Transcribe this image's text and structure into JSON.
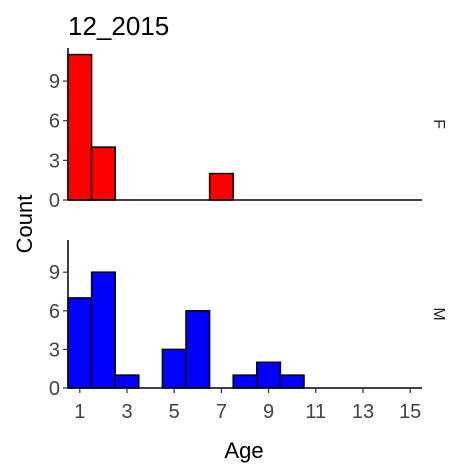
{
  "chart_data": {
    "type": "bar",
    "title": "12_2015",
    "xlabel": "Age",
    "ylabel": "Count",
    "x_ticks": [
      1,
      3,
      5,
      7,
      9,
      11,
      13,
      15
    ],
    "y_ticks": [
      0,
      3,
      6,
      9
    ],
    "xlim": [
      0.5,
      15.5
    ],
    "ylim": [
      0,
      11.5
    ],
    "bins": [
      1,
      2,
      3,
      4,
      5,
      6,
      7,
      8,
      9,
      10
    ],
    "panels": [
      {
        "label": "F",
        "color": "#ff0000",
        "values": [
          11,
          4,
          0,
          0,
          0,
          0,
          2,
          0,
          0,
          0
        ]
      },
      {
        "label": "M",
        "color": "#0000ff",
        "values": [
          7,
          9,
          1,
          0,
          3,
          6,
          0,
          1,
          2,
          1
        ]
      }
    ]
  }
}
